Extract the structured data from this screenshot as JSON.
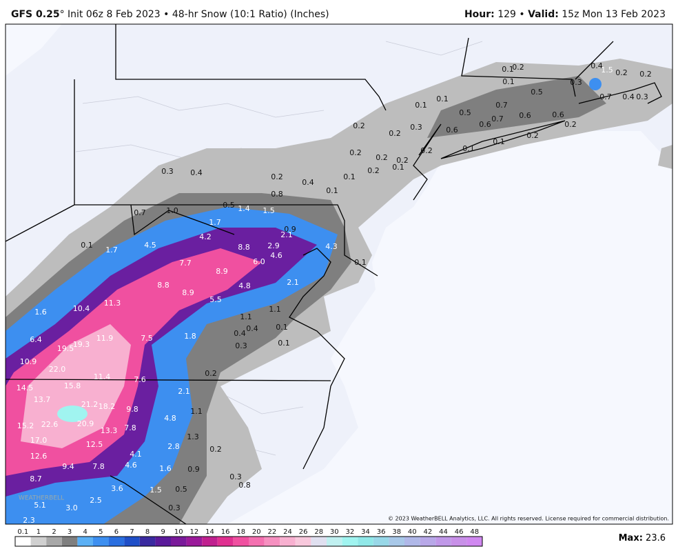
{
  "header": {
    "model": "GFS 0.25",
    "description": "° Init 06z 8 Feb 2023 • 48-hr Snow (10:1 Ratio) (Inches)",
    "hour_label": "Hour:",
    "hour": " 129 • ",
    "valid_label": "Valid:",
    "valid": " 15z Mon 13 Feb 2023"
  },
  "map": {
    "snow_labels": [
      "0.1",
      "0.2",
      "0.1",
      "0.5",
      "0.3",
      "0.4",
      "1.5",
      "0.2",
      "0.2",
      "0.7",
      "0.4",
      "0.3",
      "0.1",
      "0.1",
      "0.5",
      "0.7",
      "0.6",
      "0.6",
      "0.2",
      "0.3",
      "0.6",
      "0.6",
      "0.7",
      "0.2",
      "0.2",
      "0.2",
      "0.1",
      "0.1",
      "0.2",
      "0.2",
      "0.2",
      "0.2",
      "0.1",
      "0.2",
      "0.1",
      "0.3",
      "0.4",
      "0.2",
      "0.4",
      "0.1",
      "0.8",
      "0.5",
      "1.4",
      "1.5",
      "0.7",
      "1.0",
      "1.7",
      "4.2",
      "0.9",
      "2.1",
      "0.1",
      "1.7",
      "4.5",
      "8.8",
      "2.9",
      "4.6",
      "4.3",
      "6.0",
      "7.7",
      "8.9",
      "0.1",
      "8.8",
      "4.8",
      "2.1",
      "8.9",
      "5.5",
      "11.3",
      "10.4",
      "1.6",
      "1.1",
      "1.1",
      "0.4",
      "0.1",
      "0.4",
      "0.3",
      "0.1",
      "6.4",
      "19.5",
      "19.3",
      "11.9",
      "7.5",
      "1.8",
      "10.9",
      "22.0",
      "0.2",
      "11.4",
      "7.6",
      "14.5",
      "15.8",
      "2.1",
      "13.7",
      "21.2",
      "18.2",
      "9.8",
      "1.1",
      "4.8",
      "15.2",
      "22.6",
      "20.9",
      "7.8",
      "13.3",
      "1.3",
      "17.0",
      "12.5",
      "2.8",
      "0.2",
      "4.1",
      "12.6",
      "9.4",
      "7.8",
      "4.6",
      "1.6",
      "0.9",
      "8.7",
      "0.3",
      "0.8",
      "3.6",
      "1.5",
      "0.5",
      "2.5",
      "5.1",
      "3.0",
      "0.3",
      "2.3"
    ],
    "watermark": "WEATHERBELL",
    "copyright": "© 2023 WeatherBELL Analytics, LLC. All rights reserved. License required for commercial distribution."
  },
  "colorbar": {
    "labels": [
      "0.1",
      "1",
      "2",
      "3",
      "4",
      "5",
      "6",
      "7",
      "8",
      "9",
      "10",
      "12",
      "14",
      "16",
      "18",
      "20",
      "22",
      "24",
      "26",
      "28",
      "30",
      "32",
      "34",
      "36",
      "38",
      "40",
      "42",
      "44",
      "46",
      "48"
    ],
    "colors": [
      "#ffffff",
      "#d0d0d0",
      "#a8a8a8",
      "#7f7f7f",
      "#5bb0f5",
      "#3d8ff0",
      "#2a6fe0",
      "#1f4fc8",
      "#3a2aa0",
      "#5a1a9a",
      "#7a1a9a",
      "#9a1a9a",
      "#c0208f",
      "#e03090",
      "#f050a0",
      "#f470b0",
      "#f690c0",
      "#f8b0d0",
      "#f8c8dc",
      "#e0e0f0",
      "#c0f0f0",
      "#a0f4f0",
      "#90e8e8",
      "#98d8e8",
      "#a8c8e8",
      "#b0b8e8",
      "#b8a8e8",
      "#c098e8",
      "#c890e8",
      "#d088f0"
    ]
  },
  "footer": {
    "max_label": "Max:",
    "max_value": " 23.6"
  }
}
